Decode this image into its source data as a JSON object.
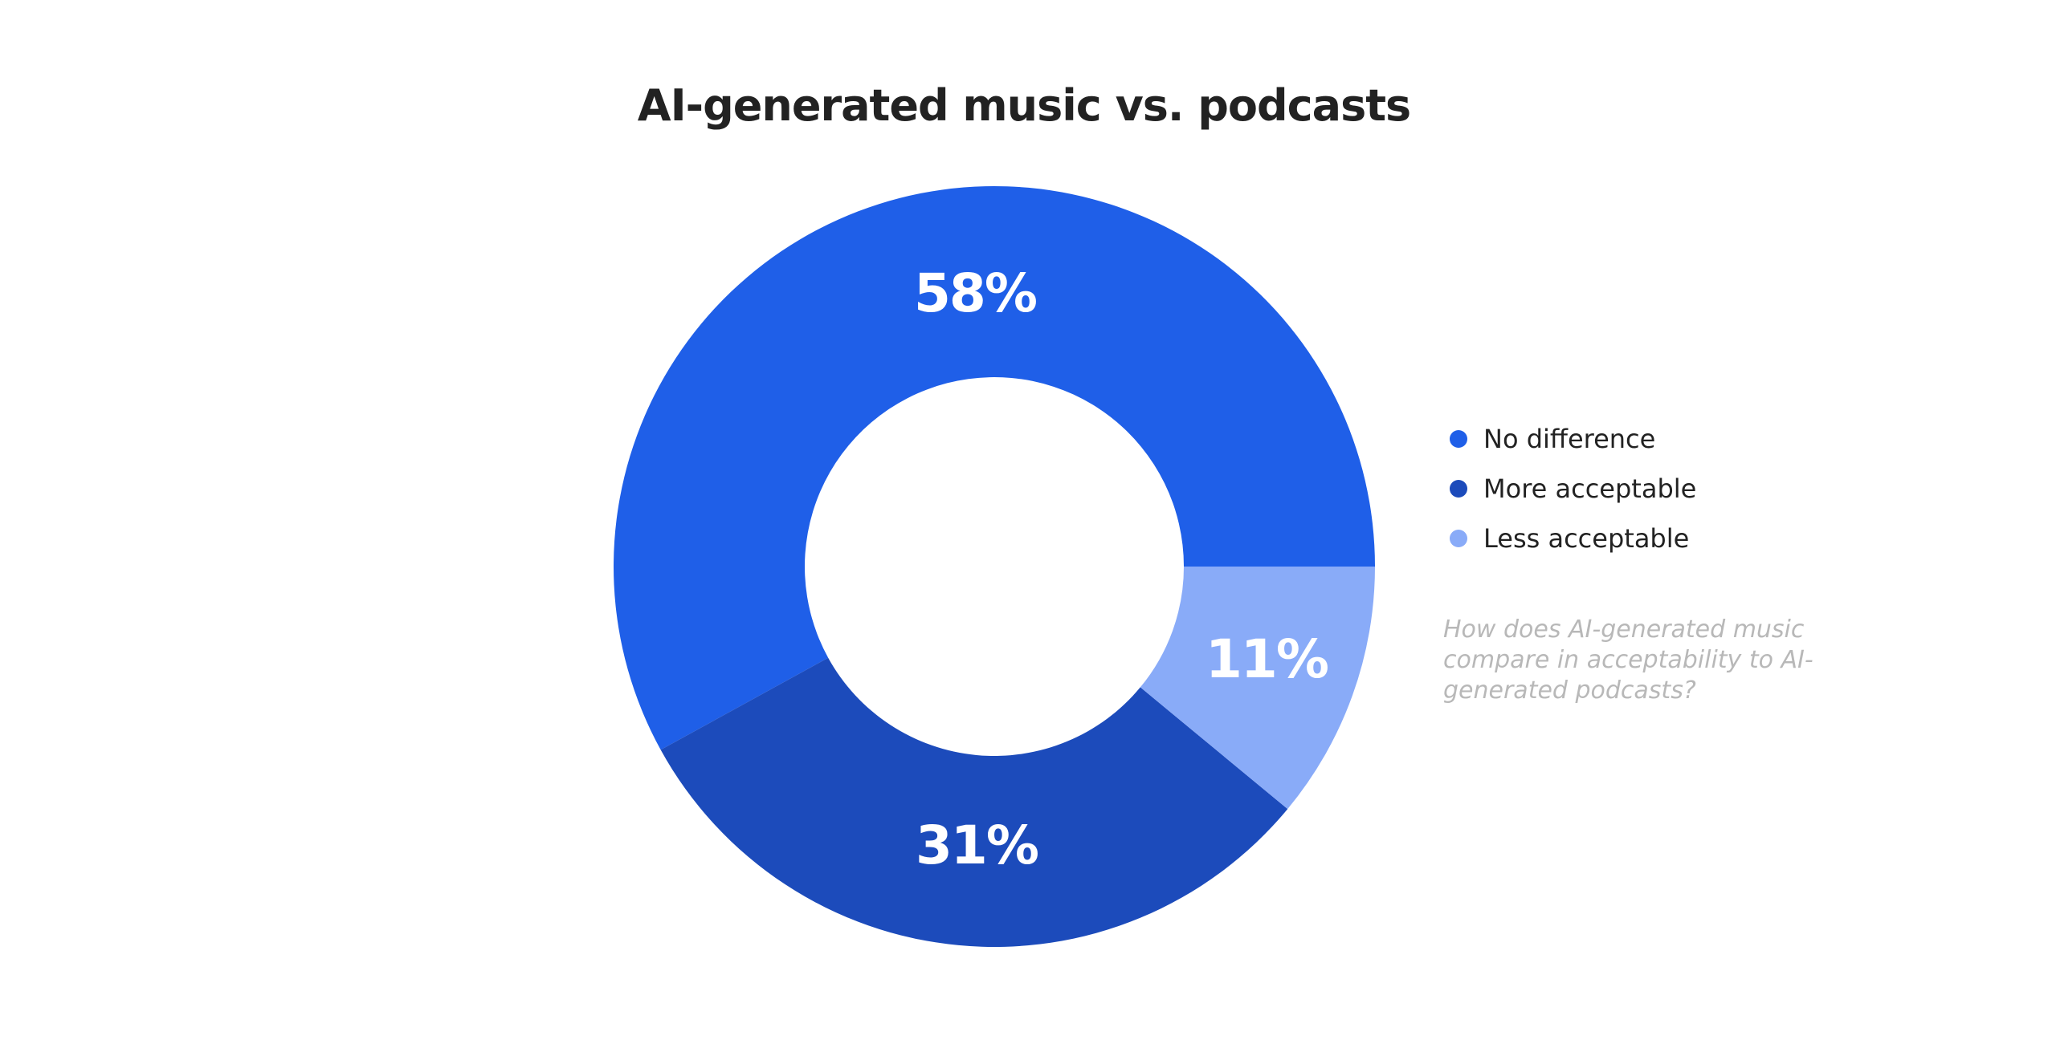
{
  "title": "AI-generated music vs. podcasts",
  "legend": {
    "items": [
      {
        "label": "No difference",
        "color": "#1f5fe8"
      },
      {
        "label": "More acceptable",
        "color": "#1c4bbb"
      },
      {
        "label": "Less acceptable",
        "color": "#89abf8"
      }
    ]
  },
  "slices": [
    {
      "label": "58%",
      "name": "No difference",
      "color": "#1f5fe8"
    },
    {
      "label": "31%",
      "name": "More acceptable",
      "color": "#1c4bbb"
    },
    {
      "label": "11%",
      "name": "Less acceptable",
      "color": "#89abf8"
    }
  ],
  "caption": "How does AI-generated music compare in acceptability to AI-generated podcasts?",
  "chart_data": {
    "type": "pie",
    "subtype": "donut",
    "title": "AI-generated music vs. podcasts",
    "categories": [
      "No difference",
      "More acceptable",
      "Less acceptable"
    ],
    "values": [
      58,
      31,
      11
    ],
    "unit": "%",
    "colors": [
      "#1f5fe8",
      "#1c4bbb",
      "#89abf8"
    ],
    "legend_position": "right",
    "annotation": "How does AI-generated music compare in acceptability to AI-generated podcasts?"
  }
}
